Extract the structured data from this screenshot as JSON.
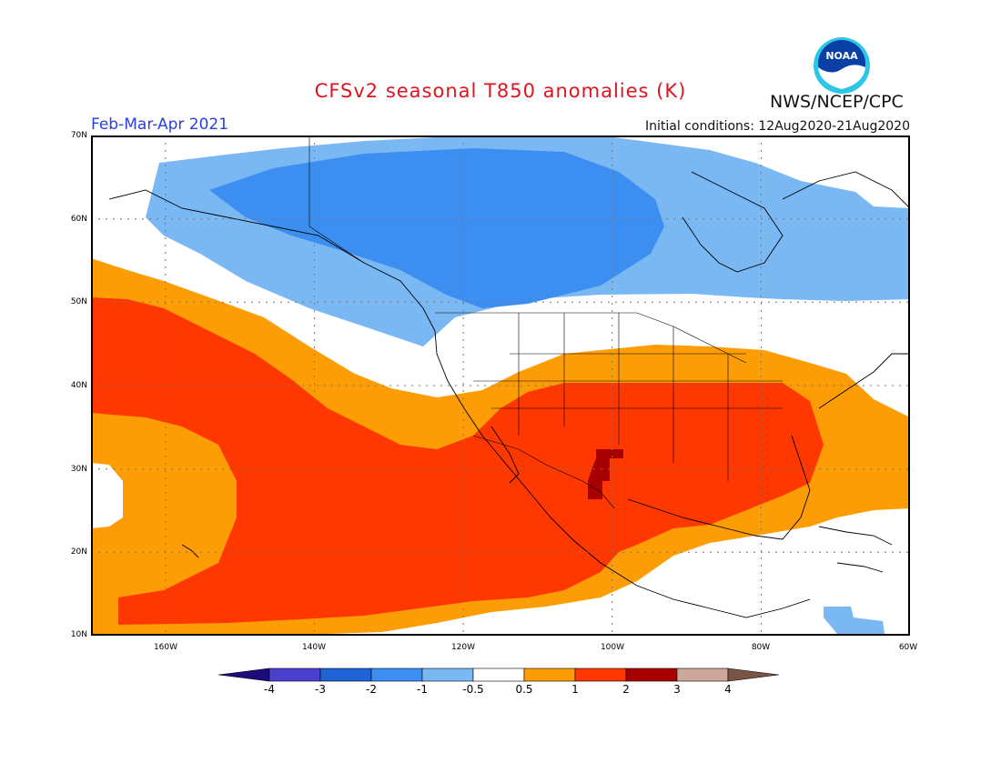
{
  "title": "CFSv2 seasonal T850 anomalies (K)",
  "period": "Feb-Mar-Apr 2021",
  "initial_conditions": "Initial conditions: 12Aug2020-21Aug2020",
  "agency": "NWS/NCEP/CPC",
  "logo_text": "NOAA",
  "map": {
    "lon_range": [
      -170,
      -60
    ],
    "lat_range": [
      10,
      70
    ],
    "lat_labels": [
      "70N",
      "60N",
      "50N",
      "40N",
      "30N",
      "20N",
      "10N"
    ],
    "lon_labels": [
      "160W",
      "140W",
      "120W",
      "100W",
      "80W",
      "60W"
    ],
    "gridlines": "dotted"
  },
  "legend": {
    "labels": [
      "-4",
      "-3",
      "-2",
      "-1",
      "-0.5",
      "0.5",
      "1",
      "2",
      "3",
      "4"
    ],
    "colors": [
      "#1c0b7a",
      "#4b3fd0",
      "#1f63d6",
      "#3c8ef0",
      "#7ab8f4",
      "#ffffff",
      "#fd9d06",
      "#ff3700",
      "#a80000",
      "#cca89c",
      "#7a5545"
    ]
  }
}
